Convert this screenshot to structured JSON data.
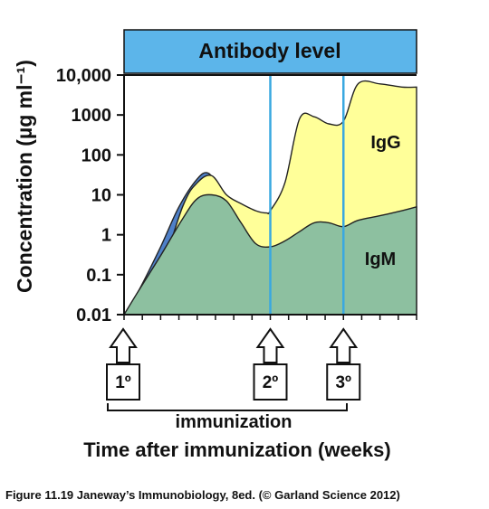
{
  "chart_data": {
    "type": "area",
    "title": "Antibody level",
    "xlabel": "Time after immunization (weeks)",
    "ylabel": "Concentration (µg ml⁻¹)",
    "yscale": "log",
    "ylim": [
      0.01,
      10000
    ],
    "yticks": [
      "0.01",
      "0.1",
      "1",
      "10",
      "100",
      "1000",
      "10,000"
    ],
    "x_unit": "weeks (unlabeled ticks)",
    "grid": false,
    "legend": "none",
    "series": [
      {
        "name": "IgM",
        "color": "#8dc0a0",
        "x": [
          0,
          0.4,
          1.0,
          1.6,
          2.0,
          2.4,
          2.8,
          3.2,
          3.6,
          4.0,
          4.4,
          4.8,
          5.2,
          5.6,
          6.0,
          6.4,
          7.0,
          7.6,
          8.0
        ],
        "values": [
          0.01,
          0.04,
          0.3,
          2.5,
          8,
          10,
          7,
          2,
          0.6,
          0.5,
          0.7,
          1.2,
          2,
          2,
          1.6,
          2.3,
          3,
          4,
          5
        ]
      },
      {
        "name": "IgG",
        "color": "#ffff99",
        "x": [
          0,
          0.8,
          1.6,
          2.0,
          2.4,
          2.8,
          3.2,
          3.6,
          3.9,
          4.0,
          4.4,
          4.8,
          5.2,
          5.6,
          6.0,
          6.4,
          7.0,
          7.6,
          8.0
        ],
        "values": [
          0.01,
          0.04,
          5,
          20,
          30,
          10,
          6,
          4,
          3.5,
          4,
          20,
          800,
          900,
          600,
          700,
          6000,
          6000,
          5000,
          5000
        ]
      }
    ],
    "early_peak": {
      "color": "#4f80c8"
    },
    "vlines": [
      {
        "x": 4.0,
        "label": "2º"
      },
      {
        "x": 6.0,
        "label": "3º"
      }
    ],
    "primary": {
      "x": 0,
      "label": "1º"
    },
    "region_labels": {
      "igg": "IgG",
      "igm": "IgM"
    },
    "bracket_label": "immunization"
  },
  "caption": "Figure 11.19  Janeway’s Immunobiology, 8ed. (© Garland Science 2012)",
  "colors": {
    "banner": "#5cb5ea",
    "vline": "#3aa8e0",
    "igm": "#8dc0a0",
    "igg": "#ffff99",
    "early": "#4f80c8"
  }
}
